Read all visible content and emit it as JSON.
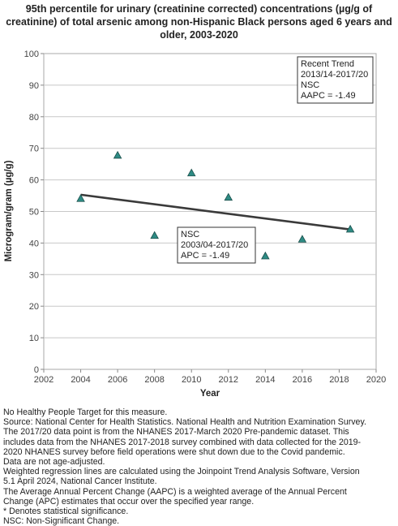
{
  "title_lines": [
    "95th percentile for urinary (creatinine corrected) concentrations (µg/g of",
    "creatinine) of total arsenic among non-Hispanic Black persons aged 6 years and",
    "older, 2003-2020"
  ],
  "chart_data": {
    "type": "scatter",
    "xlabel": "Year",
    "ylabel": "Microgram/gram (µg/g)",
    "xlim": [
      2002,
      2020
    ],
    "ylim": [
      0,
      100
    ],
    "xticks": [
      2002,
      2004,
      2006,
      2008,
      2010,
      2012,
      2014,
      2016,
      2018,
      2020
    ],
    "yticks": [
      0,
      10,
      20,
      30,
      40,
      50,
      60,
      70,
      80,
      90,
      100
    ],
    "grid": "horizontal",
    "marker_color": "#2e8b84",
    "trend_color": "#3a3a3a",
    "points": [
      {
        "x": 2004,
        "y": 54.1
      },
      {
        "x": 2006,
        "y": 67.8
      },
      {
        "x": 2008,
        "y": 42.4
      },
      {
        "x": 2010,
        "y": 62.2
      },
      {
        "x": 2012,
        "y": 54.5
      },
      {
        "x": 2014,
        "y": 35.9
      },
      {
        "x": 2016,
        "y": 41.2
      },
      {
        "x": 2018.6,
        "y": 44.4
      }
    ],
    "trend_line": [
      {
        "x": 2004,
        "y": 55.3
      },
      {
        "x": 2018.6,
        "y": 44.3
      }
    ],
    "annotations": [
      {
        "id": "recent",
        "lines": [
          "Recent Trend",
          "2013/14-2017/20",
          "NSC",
          "AAPC = -1.49"
        ]
      },
      {
        "id": "overall",
        "lines": [
          "NSC",
          "2003/04-2017/20",
          "APC = -1.49"
        ]
      }
    ]
  },
  "footnotes": [
    "No Healthy People Target for this measure.",
    "Source: National Center for Health Statistics. National Health and Nutrition Examination Survey.",
    "The 2017/20 data point is from the NHANES 2017-March 2020 Pre-pandemic dataset. This",
    "includes data from the NHANES 2017-2018 survey combined with data collected for the 2019-",
    "2020 NHANES survey before field operations were shut down due to the Covid pandemic.",
    "Data are not age-adjusted.",
    "Weighted regression lines are calculated using the Joinpoint Trend Analysis Software, Version",
    "5.1 April 2024, National Cancer Institute.",
    "The Average Annual Percent Change (AAPC) is a weighted average of the Annual Percent",
    "Change (APC) estimates that occur over the specified year range.",
    "* Denotes statistical significance.",
    "NSC: Non-Significant Change."
  ]
}
